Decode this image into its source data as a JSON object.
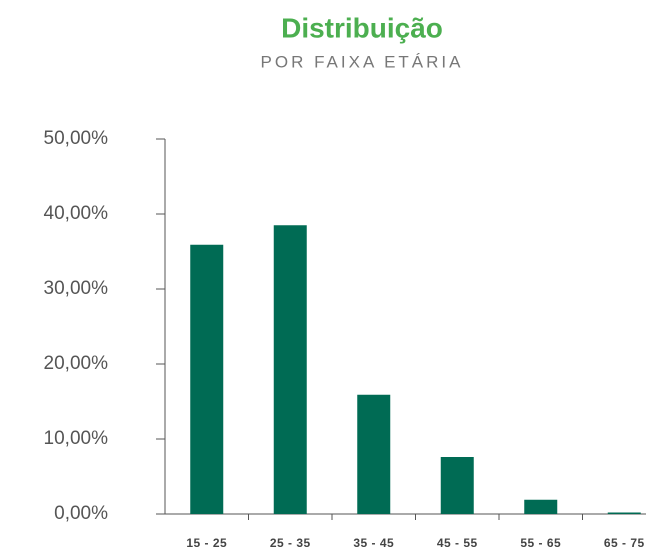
{
  "chart_data": {
    "type": "bar",
    "title": "Distribuição",
    "subtitle": "POR FAIXA ETÁRIA",
    "categories": [
      "15 - 25",
      "25 - 35",
      "35 - 45",
      "45 - 55",
      "55 - 65",
      "65 - 75"
    ],
    "values": [
      35.9,
      38.5,
      15.9,
      7.6,
      1.9,
      0.2
    ],
    "color": "#006b54",
    "ylim": [
      0,
      50
    ],
    "yticks": [
      {
        "value": 0,
        "label": "0,00%"
      },
      {
        "value": 10,
        "label": "10,00%"
      },
      {
        "value": 20,
        "label": "20,00%"
      },
      {
        "value": 30,
        "label": "30,00%"
      },
      {
        "value": 40,
        "label": "40,00%"
      },
      {
        "value": 50,
        "label": "50,00%"
      }
    ],
    "grid": false
  }
}
